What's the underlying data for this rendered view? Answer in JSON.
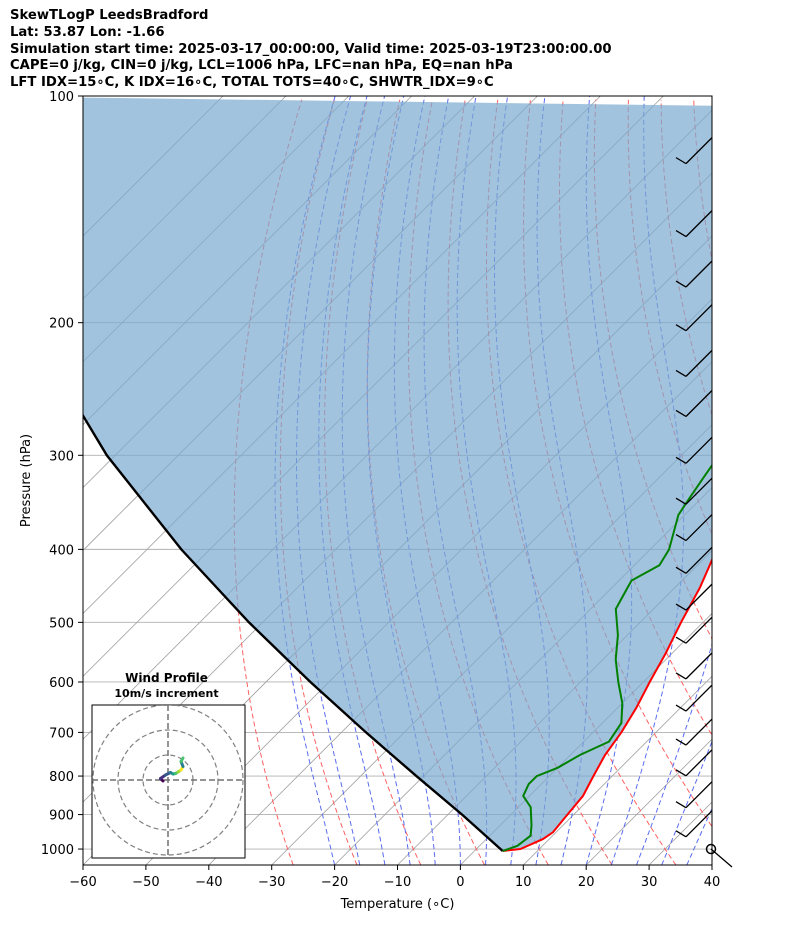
{
  "header": {
    "line1": "SkewTLogP LeedsBradford",
    "line2": "Lat: 53.87   Lon: -1.66",
    "line3": "Simulation start time: 2025-03-17_00:00:00, Valid time: 2025-03-19T23:00:00.00",
    "line4": "CAPE=0 j/kg, CIN=0 j/kg, LCL=1006 hPa, LFC=nan hPa, EQ=nan hPa",
    "line5": "LFT IDX=15∘C, K IDX=16∘C, TOTAL TOTS=40∘C, SHWTR_IDX=9∘C"
  },
  "chart_data": [
    {
      "type": "line",
      "xlabel": "Temperature (∘C)",
      "ylabel": "Pressure (hPa)",
      "x_ticks": [
        "−60",
        "−50",
        "−40",
        "−30",
        "−20",
        "−10",
        "0",
        "10",
        "20",
        "30",
        "40"
      ],
      "y_ticks": [
        "100",
        "200",
        "300",
        "400",
        "500",
        "600",
        "700",
        "800",
        "900",
        "1000"
      ],
      "xlim": [
        -60,
        40
      ],
      "ylim": [
        1050,
        100
      ],
      "y_scale": "log",
      "skew": "45 degrees",
      "grid": true,
      "series": [
        {
          "role": "temperature",
          "color": "#ff0000",
          "points": [
            [
              4.5,
              1006
            ],
            [
              7,
              1000
            ],
            [
              9,
              970
            ],
            [
              9.5,
              950
            ],
            [
              9,
              900
            ],
            [
              8.5,
              850
            ],
            [
              7,
              800
            ],
            [
              5.5,
              750
            ],
            [
              4.5,
              700
            ],
            [
              3,
              650
            ],
            [
              1,
              600
            ],
            [
              -1,
              550
            ],
            [
              -3.5,
              500
            ],
            [
              -6,
              450
            ],
            [
              -8,
              420
            ],
            [
              -11,
              380
            ],
            [
              -13.5,
              350
            ],
            [
              -16,
              320
            ],
            [
              -17.5,
              300
            ],
            [
              -19.5,
              270
            ],
            [
              -20.3,
              250
            ],
            [
              -19.5,
              230
            ],
            [
              -17.5,
              210
            ],
            [
              -16.5,
              200
            ],
            [
              -14.5,
              185
            ],
            [
              -11.5,
              170
            ],
            [
              -9,
              160
            ],
            [
              -7,
              150
            ],
            [
              -5.5,
              140
            ],
            [
              -4.5,
              130
            ],
            [
              -3.5,
              120
            ],
            [
              -3,
              110
            ],
            [
              -2,
              105
            ]
          ]
        },
        {
          "role": "dewpoint",
          "color": "#008000",
          "points": [
            [
              4.5,
              1006
            ],
            [
              6,
              990
            ],
            [
              6.5,
              960
            ],
            [
              5,
              930
            ],
            [
              2,
              880
            ],
            [
              -1,
              850
            ],
            [
              -2,
              820
            ],
            [
              -2,
              800
            ],
            [
              0,
              780
            ],
            [
              1.5,
              750
            ],
            [
              4,
              720
            ],
            [
              3,
              680
            ],
            [
              0,
              640
            ],
            [
              -4,
              600
            ],
            [
              -8,
              560
            ],
            [
              -11.5,
              520
            ],
            [
              -16,
              480
            ],
            [
              -17.5,
              450
            ],
            [
              -18,
              440
            ],
            [
              -16,
              420
            ],
            [
              -17,
              400
            ],
            [
              -21,
              360
            ],
            [
              -22,
              340
            ],
            [
              -23,
              320
            ],
            [
              -24,
              300
            ],
            [
              -25.5,
              280
            ],
            [
              -26.5,
              260
            ],
            [
              -27.5,
              240
            ],
            [
              -28,
              220
            ],
            [
              -28.5,
              200
            ],
            [
              -29.5,
              190
            ],
            [
              -30,
              178
            ],
            [
              -31,
              166
            ],
            [
              -30,
              154
            ],
            [
              -27.5,
              140
            ],
            [
              -24,
              125
            ],
            [
              -19,
              110
            ],
            [
              -15,
              102
            ]
          ]
        },
        {
          "role": "parcel",
          "color": "#000000",
          "points": [
            [
              4.5,
              1006
            ],
            [
              -7.75,
              900
            ],
            [
              -21.14,
              800
            ],
            [
              -36.09,
              700
            ],
            [
              -52.94,
              600
            ],
            [
              -72.18,
              500
            ],
            [
              -94.55,
              400
            ],
            [
              -121.36,
              300
            ],
            [
              -155.09,
              200
            ],
            [
              -201.97,
              100
            ]
          ]
        }
      ]
    },
    {
      "type": "scatter",
      "title": "Wind Profile",
      "subtitle": "10m/s increment",
      "x": [
        -1.0,
        -1.5,
        -0.5,
        0.5,
        1.0,
        1.5,
        2.0,
        2.6,
        3.0,
        2.6,
        3.0
      ],
      "y": [
        -0.2,
        0.3,
        1.0,
        1.5,
        1.2,
        1.3,
        1.6,
        2.0,
        2.7,
        3.7,
        4.4
      ]
    }
  ]
}
